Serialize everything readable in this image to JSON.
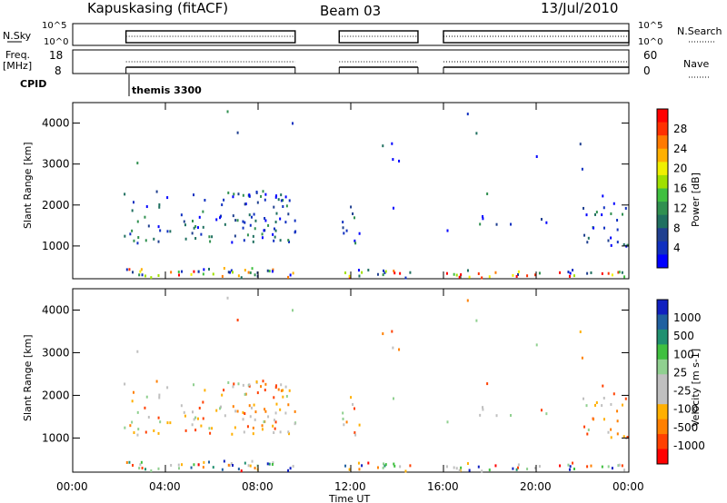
{
  "header": {
    "station": "Kapuskasing (fitACF)",
    "beam": "Beam 03",
    "date": "13/Jul/2010"
  },
  "top_panels": {
    "nsky_label": "N.Sky",
    "nsky_ticks": [
      "10^5",
      "10^0"
    ],
    "nsearch_label": "N.Search",
    "nsearch_ticks": [
      "10^5",
      "10^0"
    ],
    "freq_label_1": "Freq.",
    "freq_label_2": "[MHz]",
    "freq_ticks": [
      "18",
      "8"
    ],
    "nave_label": "Nave",
    "nave_ticks": [
      "60",
      "0"
    ],
    "cpid_label": "CPID",
    "cpid_value": "themis 3300"
  },
  "chart_data": [
    {
      "type": "heatmap",
      "name": "power",
      "ylabel": "Slant Range [km]",
      "y_ticks": [
        "1000",
        "2000",
        "3000",
        "4000"
      ],
      "ylim": [
        200,
        4500
      ],
      "colorbar_label": "Power [dB]",
      "colorbar_ticks": [
        "28",
        "24",
        "20",
        "16",
        "12",
        "8",
        "4"
      ],
      "colorbar_colors": [
        "#ff0000",
        "#ff3000",
        "#ff7a00",
        "#ffb000",
        "#f0f000",
        "#a0e000",
        "#40c040",
        "#309050",
        "#207060",
        "#204090",
        "#1030c0",
        "#0000ff"
      ]
    },
    {
      "type": "heatmap",
      "name": "velocity",
      "xlabel": "Time UT",
      "ylabel": "Slant Range [km]",
      "y_ticks": [
        "1000",
        "2000",
        "3000",
        "4000"
      ],
      "ylim": [
        200,
        4500
      ],
      "x_ticks": [
        "00:00",
        "04:00",
        "08:00",
        "12:00",
        "16:00",
        "20:00",
        "00:00"
      ],
      "colorbar_label": "Velocity [m s-1]",
      "colorbar_ticks": [
        "1000",
        "500",
        "100",
        "25",
        "-25",
        "-100",
        "-500",
        "-1000"
      ],
      "colorbar_colors": [
        "#1020c0",
        "#2060a0",
        "#209070",
        "#40c040",
        "#90d090",
        "#c0c0c0",
        "#c0c0c0",
        "#ffb000",
        "#ff8000",
        "#ff4000",
        "#ff0000"
      ]
    }
  ]
}
